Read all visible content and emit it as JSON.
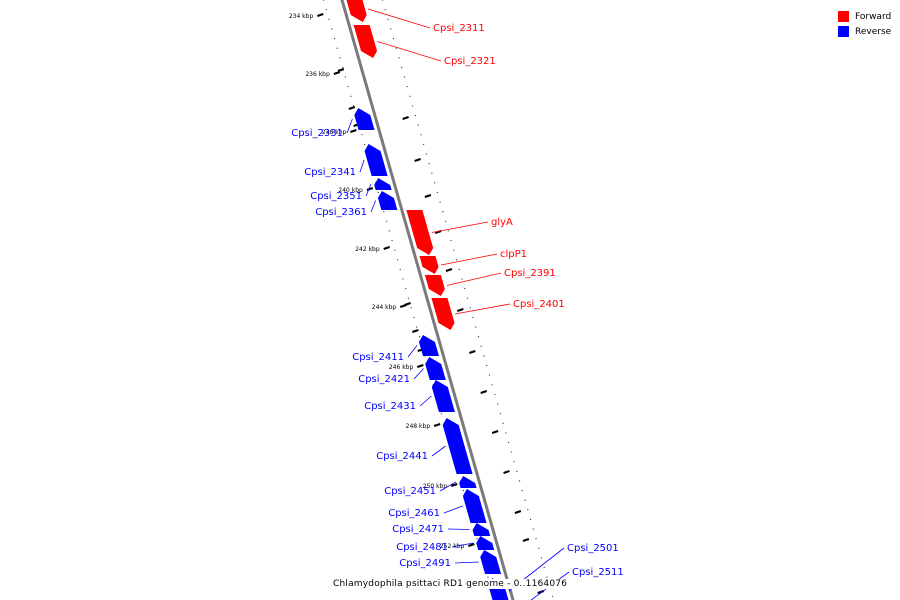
{
  "legend": {
    "forward": {
      "label": "Forward",
      "color": "#ff0000"
    },
    "reverse": {
      "label": "Reverse",
      "color": "#0000ff"
    }
  },
  "caption": "Chlamydophila psittaci RD1 genome - 0..1164076",
  "ticks": [
    "234 kbp",
    "236 kbp",
    "238 kbp",
    "240 kbp",
    "242 kbp",
    "244 kbp",
    "246 kbp",
    "248 kbp",
    "250 kbp",
    "252 kbp"
  ],
  "genes": [
    {
      "name": "Cpsi_2311",
      "strand": "forward"
    },
    {
      "name": "Cpsi_2321",
      "strand": "forward"
    },
    {
      "name": "Cpsi_2331",
      "strand": "reverse"
    },
    {
      "name": "Cpsi_2341",
      "strand": "reverse"
    },
    {
      "name": "Cpsi_2351",
      "strand": "reverse"
    },
    {
      "name": "Cpsi_2361",
      "strand": "reverse"
    },
    {
      "name": "glyA",
      "strand": "forward"
    },
    {
      "name": "clpP1",
      "strand": "forward"
    },
    {
      "name": "Cpsi_2391",
      "strand": "forward"
    },
    {
      "name": "Cpsi_2401",
      "strand": "forward"
    },
    {
      "name": "Cpsi_2411",
      "strand": "reverse"
    },
    {
      "name": "Cpsi_2421",
      "strand": "reverse"
    },
    {
      "name": "Cpsi_2431",
      "strand": "reverse"
    },
    {
      "name": "Cpsi_2441",
      "strand": "reverse"
    },
    {
      "name": "Cpsi_2451",
      "strand": "reverse"
    },
    {
      "name": "Cpsi_2461",
      "strand": "reverse"
    },
    {
      "name": "Cpsi_2471",
      "strand": "reverse"
    },
    {
      "name": "Cpsi_2481",
      "strand": "reverse"
    },
    {
      "name": "Cpsi_2491",
      "strand": "reverse"
    },
    {
      "name": "Cpsi_2501",
      "strand": "reverse"
    },
    {
      "name": "Cpsi_2511",
      "strand": "reverse"
    }
  ]
}
